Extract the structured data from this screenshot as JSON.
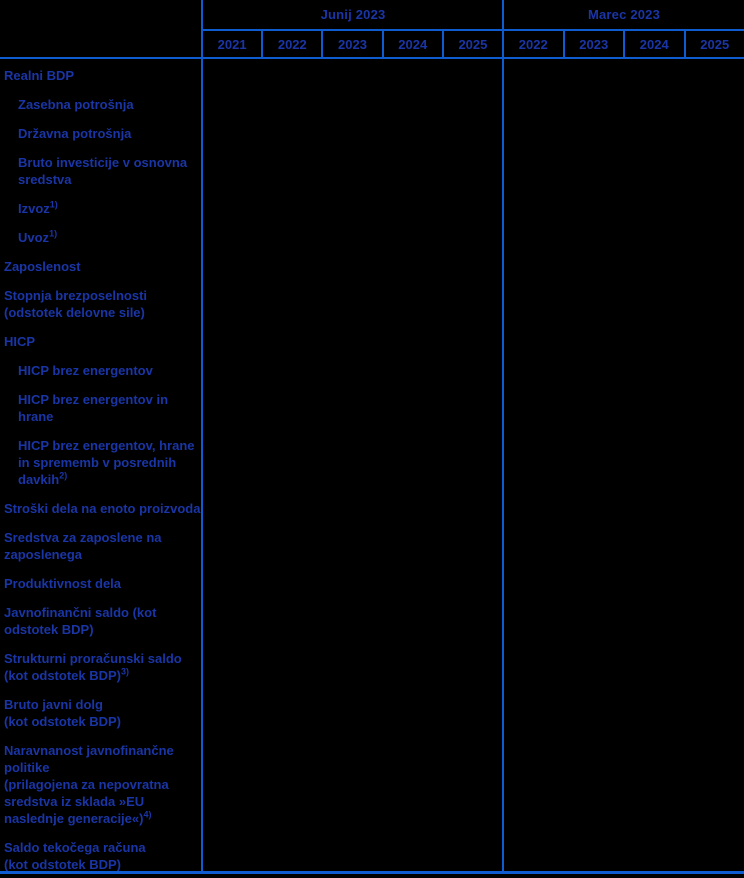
{
  "table": {
    "colors": {
      "background": "#000000",
      "text": "#1a35a5",
      "grid": "#0f5cd0"
    },
    "header": {
      "groups": [
        {
          "title": "Junij 2023",
          "years": [
            "2021",
            "2022",
            "2023",
            "2024",
            "2025"
          ]
        },
        {
          "title": "Marec 2023",
          "years": [
            "2022",
            "2023",
            "2024",
            "2025"
          ]
        }
      ]
    },
    "rows": [
      {
        "label": "Realni BDP",
        "indent": 0,
        "sup": ""
      },
      {
        "label": "Zasebna potrošnja",
        "indent": 1,
        "sup": ""
      },
      {
        "label": "Državna potrošnja",
        "indent": 1,
        "sup": ""
      },
      {
        "label": "Bruto investicije v osnovna\nsredstva",
        "indent": 1,
        "sup": ""
      },
      {
        "label": "Izvoz",
        "indent": 1,
        "sup": "1)"
      },
      {
        "label": "Uvoz",
        "indent": 1,
        "sup": "1)"
      },
      {
        "label": "Zaposlenost",
        "indent": 0,
        "sup": ""
      },
      {
        "label": "Stopnja brezposelnosti\n(odstotek delovne sile)",
        "indent": 0,
        "sup": ""
      },
      {
        "label": "HICP",
        "indent": 0,
        "sup": ""
      },
      {
        "label": "HICP brez energentov",
        "indent": 1,
        "sup": ""
      },
      {
        "label": "HICP brez energentov in\nhrane",
        "indent": 1,
        "sup": ""
      },
      {
        "label": "HICP brez energentov, hrane\nin sprememb v posrednih\ndavkih",
        "indent": 1,
        "sup": "2)"
      },
      {
        "label": "Stroški dela na enoto proizvoda",
        "indent": 0,
        "sup": ""
      },
      {
        "label": "Sredstva za zaposlene na\nzaposlenega",
        "indent": 0,
        "sup": ""
      },
      {
        "label": "Produktivnost dela",
        "indent": 0,
        "sup": ""
      },
      {
        "label": "Javnofinančni saldo (kot\nodstotek BDP)",
        "indent": 0,
        "sup": ""
      },
      {
        "label": "Strukturni proračunski saldo\n(kot odstotek BDP)",
        "indent": 0,
        "sup": "3)"
      },
      {
        "label": "Bruto javni dolg\n(kot odstotek BDP)",
        "indent": 0,
        "sup": ""
      },
      {
        "label": "Naravnanost javnofinančne\npolitike\n(prilagojena za nepovratna\nsredstva iz sklada »EU\nnaslednje generacije«)",
        "indent": 0,
        "sup": "4)"
      },
      {
        "label": "Saldo tekočega računa\n(kot odstotek BDP)",
        "indent": 0,
        "sup": ""
      }
    ]
  }
}
